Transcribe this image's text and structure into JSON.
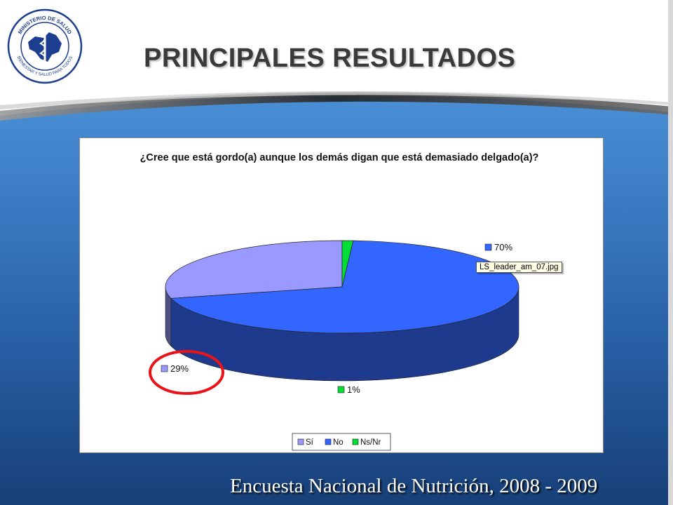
{
  "header": {
    "title": "PRINCIPALES RESULTADOS",
    "logo": {
      "top_text": "MINISTERIO DE SALUD",
      "bottom_text": "BIENESTAR Y SALUD PARA TODOS"
    }
  },
  "tooltip": "LS_leader_am_07.jpg",
  "footer": "Encuesta Nacional de Nutrición, 2008 - 2009",
  "colors": {
    "band_blue": "#2f6cb4",
    "slice_si": "#9999ff",
    "slice_no": "#3366ff",
    "slice_nsnr": "#00dd33",
    "highlight_circle": "#e8141a"
  },
  "chart_data": {
    "type": "pie",
    "three_d": true,
    "title": "¿Cree que está gordo(a) aunque los demás digan que está demasiado delgado(a)?",
    "categories": [
      "Sí",
      "No",
      "Ns/Nr"
    ],
    "values": [
      29,
      70,
      1
    ],
    "data_labels": [
      "29%",
      "70%",
      "1%"
    ],
    "legend": {
      "position": "bottom",
      "entries": [
        "Sí",
        "No",
        "Ns/Nr"
      ]
    },
    "highlighted_category": "Sí"
  }
}
